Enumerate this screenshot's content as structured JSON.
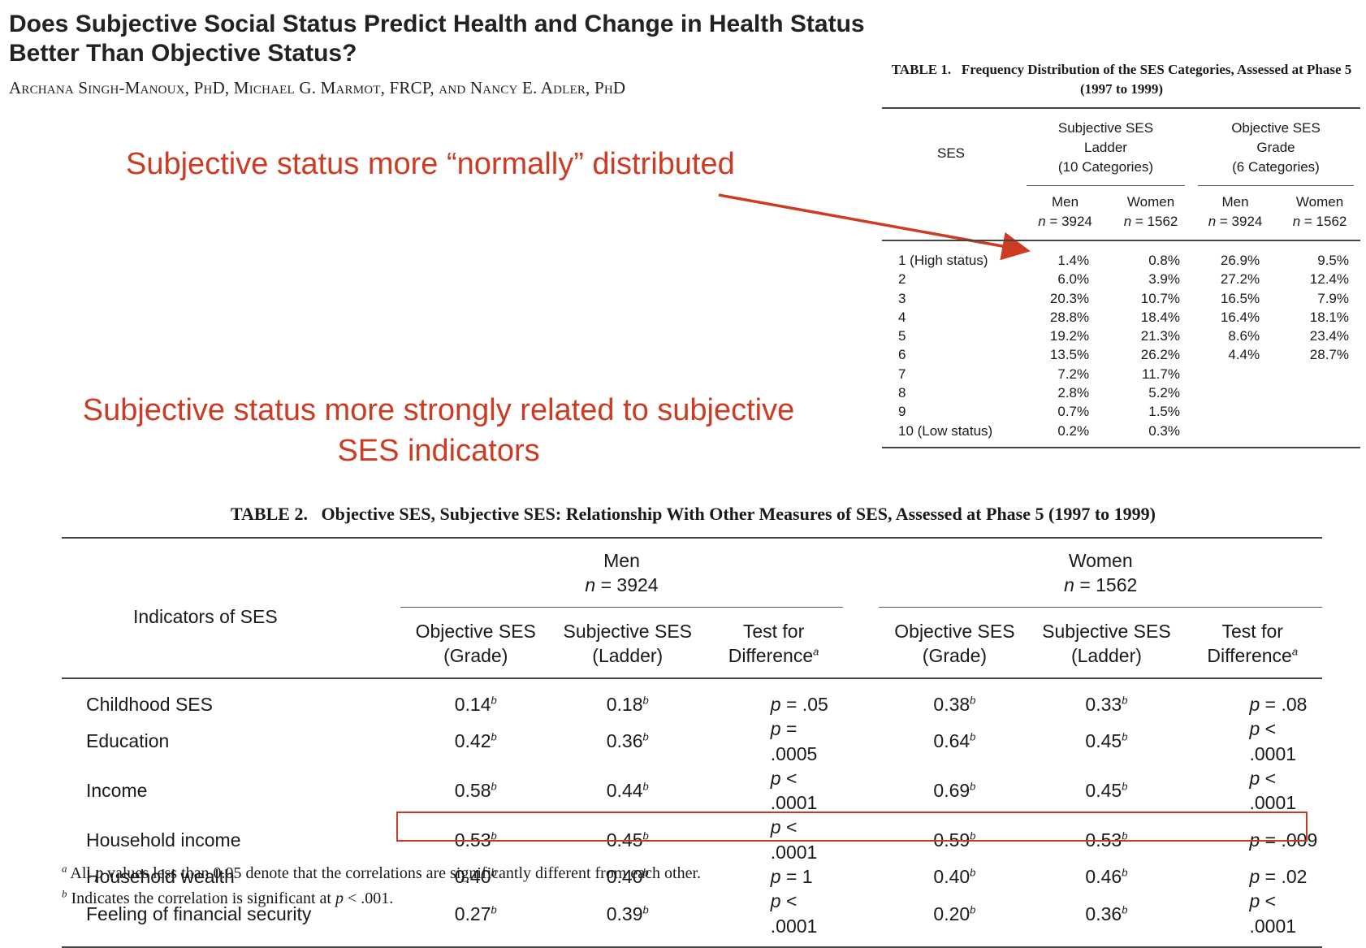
{
  "paper": {
    "title": "Does Subjective Social Status Predict Health and Change in Health Status Better Than Objective Status?",
    "authors": "Archana Singh-Manoux, PhD, Michael G. Marmot, FRCP, and Nancy E. Adler, PhD"
  },
  "annotations": {
    "note1": "Subjective status more “normally” distributed",
    "note2": "Subjective status more strongly related to subjective SES indicators"
  },
  "colors": {
    "annotation": "#cc3b22",
    "text": "#1a1a1a"
  },
  "table1": {
    "caption_label": "TABLE 1.",
    "caption_text": "Frequency Distribution of the SES Categories, Assessed at Phase 5 (1997 to 1999)",
    "row_header": "SES",
    "group1": {
      "line1": "Subjective SES",
      "line2": "Ladder",
      "line3": "(10 Categories)"
    },
    "group2": {
      "line1": "Objective SES",
      "line2": "Grade",
      "line3": "(6 Categories)"
    },
    "men_label": "Men",
    "women_label": "Women",
    "n_men": "= 3924",
    "n_women": "= 1562",
    "rows": [
      {
        "ses": "1 (High status)",
        "subj_men": "1.4%",
        "subj_women": "0.8%",
        "obj_men": "26.9%",
        "obj_women": "9.5%"
      },
      {
        "ses": "2",
        "subj_men": "6.0%",
        "subj_women": "3.9%",
        "obj_men": "27.2%",
        "obj_women": "12.4%"
      },
      {
        "ses": "3",
        "subj_men": "20.3%",
        "subj_women": "10.7%",
        "obj_men": "16.5%",
        "obj_women": "7.9%"
      },
      {
        "ses": "4",
        "subj_men": "28.8%",
        "subj_women": "18.4%",
        "obj_men": "16.4%",
        "obj_women": "18.1%"
      },
      {
        "ses": "5",
        "subj_men": "19.2%",
        "subj_women": "21.3%",
        "obj_men": "8.6%",
        "obj_women": "23.4%"
      },
      {
        "ses": "6",
        "subj_men": "13.5%",
        "subj_women": "26.2%",
        "obj_men": "4.4%",
        "obj_women": "28.7%"
      },
      {
        "ses": "7",
        "subj_men": "7.2%",
        "subj_women": "11.7%",
        "obj_men": "",
        "obj_women": ""
      },
      {
        "ses": "8",
        "subj_men": "2.8%",
        "subj_women": "5.2%",
        "obj_men": "",
        "obj_women": ""
      },
      {
        "ses": "9",
        "subj_men": "0.7%",
        "subj_women": "1.5%",
        "obj_men": "",
        "obj_women": ""
      },
      {
        "ses": "10 (Low status)",
        "subj_men": "0.2%",
        "subj_women": "0.3%",
        "obj_men": "",
        "obj_women": ""
      }
    ]
  },
  "table2": {
    "caption_label": "TABLE 2.",
    "caption_text": "Objective SES, Subjective SES: Relationship With Other Measures of SES, Assessed at Phase 5 (1997 to 1999)",
    "row_header": "Indicators of SES",
    "men": {
      "label": "Men",
      "n": "= 3924"
    },
    "women": {
      "label": "Women",
      "n": "= 1562"
    },
    "col_obj": {
      "line1": "Objective SES",
      "line2": "(Grade)"
    },
    "col_subj": {
      "line1": "Subjective SES",
      "line2": "(Ladder)"
    },
    "col_test": {
      "line1": "Test for",
      "line2": "Difference"
    },
    "rows": [
      {
        "indicator": "Childhood SES",
        "men_obj": "0.14",
        "men_subj": "0.18",
        "men_test": "= .05",
        "women_obj": "0.38",
        "women_subj": "0.33",
        "women_test": "= .08"
      },
      {
        "indicator": "Education",
        "men_obj": "0.42",
        "men_subj": "0.36",
        "men_test": "= .0005",
        "women_obj": "0.64",
        "women_subj": "0.45",
        "women_test": "< .0001"
      },
      {
        "indicator": "Income",
        "men_obj": "0.58",
        "men_subj": "0.44",
        "men_test": "< .0001",
        "women_obj": "0.69",
        "women_subj": "0.45",
        "women_test": "< .0001"
      },
      {
        "indicator": "Household income",
        "men_obj": "0.53",
        "men_subj": "0.45",
        "men_test": "< .0001",
        "women_obj": "0.59",
        "women_subj": "0.53",
        "women_test": "= .009"
      },
      {
        "indicator": "Household wealth",
        "men_obj": "0.40",
        "men_subj": "0.40",
        "men_test": "= 1",
        "women_obj": "0.40",
        "women_subj": "0.46",
        "women_test": "= .02"
      },
      {
        "indicator": "Feeling of financial security",
        "men_obj": "0.27",
        "men_subj": "0.39",
        "men_test": "< .0001",
        "women_obj": "0.20",
        "women_subj": "0.36",
        "women_test": "< .0001"
      }
    ],
    "footnote_a": "All p values less than 0.05 denote that the correlations are significantly different from each other.",
    "footnote_b": "Indicates the correlation is significant at p < .001."
  }
}
